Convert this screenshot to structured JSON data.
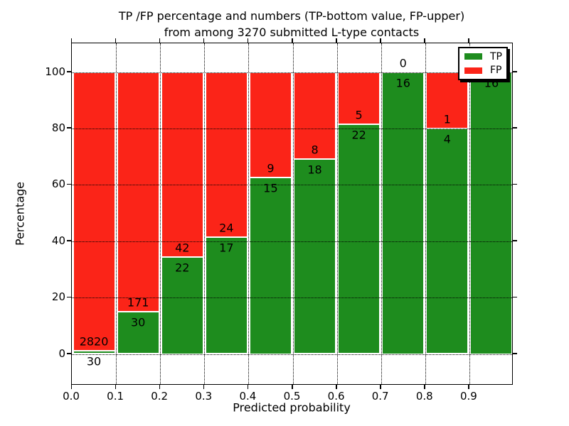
{
  "title": {
    "line1": "TP /FP percentage and numbers (TP-bottom value, FP-upper)",
    "line2": "from among 3270 submitted L-type contacts"
  },
  "axes": {
    "xlabel": "Predicted probability",
    "ylabel": "Percentage",
    "x_tick_labels": [
      "0.0",
      "0.1",
      "0.2",
      "0.3",
      "0.4",
      "0.5",
      "0.6",
      "0.7",
      "0.8",
      "0.9"
    ],
    "y_tick_labels": [
      "0",
      "20",
      "40",
      "60",
      "80",
      "100"
    ]
  },
  "legend": {
    "items": [
      {
        "label": "TP",
        "color": "#1e8c1e"
      },
      {
        "label": "FP",
        "color": "#fb2418"
      }
    ]
  },
  "colors": {
    "tp_green": "#1e8c1e",
    "fp_red": "#fb2418",
    "grid": "#000000",
    "frame": "#000000",
    "background": "#ffffff"
  },
  "chart_data": {
    "type": "bar",
    "stacked": true,
    "normalized": "each 0.1 bin scaled to 100%",
    "title": "TP /FP percentage and numbers (TP-bottom value, FP-upper) from among 3270 submitted L-type contacts",
    "xlabel": "Predicted probability",
    "ylabel": "Percentage",
    "xlim": [
      0.0,
      1.0
    ],
    "ylim": [
      -11,
      110
    ],
    "y_ticks": [
      0,
      20,
      40,
      60,
      80,
      100
    ],
    "x_ticks": [
      0.0,
      0.1,
      0.2,
      0.3,
      0.4,
      0.5,
      0.6,
      0.7,
      0.8,
      0.9
    ],
    "grid": "dotted black, drawn over bars",
    "legend_position": "upper right",
    "total_contacts": 3270,
    "categories": [
      "0.0-0.1",
      "0.1-0.2",
      "0.2-0.3",
      "0.3-0.4",
      "0.4-0.5",
      "0.5-0.6",
      "0.6-0.7",
      "0.7-0.8",
      "0.8-0.9",
      "0.9-1.0"
    ],
    "series": [
      {
        "name": "TP",
        "color": "#1e8c1e",
        "counts": [
          30,
          30,
          22,
          17,
          15,
          18,
          22,
          16,
          4,
          16
        ]
      },
      {
        "name": "FP",
        "color": "#fb2418",
        "counts": [
          2820,
          171,
          42,
          24,
          9,
          8,
          5,
          0,
          1,
          0
        ]
      }
    ],
    "tp_percent": [
      1.1,
      14.9,
      34.4,
      41.5,
      62.5,
      69.2,
      81.5,
      100.0,
      80.0,
      100.0
    ]
  }
}
